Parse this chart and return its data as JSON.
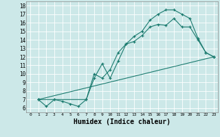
{
  "background_color": "#cce8e8",
  "grid_color": "#ffffff",
  "line_color": "#1a7a6e",
  "xlabel": "Humidex (Indice chaleur)",
  "xlim": [
    -0.5,
    23.5
  ],
  "ylim": [
    5.5,
    18.5
  ],
  "xticks": [
    0,
    1,
    2,
    3,
    4,
    5,
    6,
    7,
    8,
    9,
    10,
    11,
    12,
    13,
    14,
    15,
    16,
    17,
    18,
    19,
    20,
    21,
    22,
    23
  ],
  "yticks": [
    6,
    7,
    8,
    9,
    10,
    11,
    12,
    13,
    14,
    15,
    16,
    17,
    18
  ],
  "line1_x": [
    1,
    2,
    3,
    4,
    5,
    6,
    7,
    8,
    9,
    10,
    11,
    12,
    13,
    14,
    15,
    16,
    17,
    18,
    19,
    20,
    21,
    22,
    23
  ],
  "line1_y": [
    7.0,
    6.2,
    7.0,
    6.8,
    6.5,
    6.2,
    7.0,
    9.5,
    11.2,
    9.5,
    11.5,
    13.5,
    14.4,
    15.0,
    16.3,
    17.0,
    17.5,
    17.5,
    17.0,
    16.5,
    14.2,
    12.5,
    12.0
  ],
  "line2_x": [
    1,
    3,
    7,
    8,
    9,
    10,
    11,
    12,
    13,
    14,
    15,
    16,
    17,
    18,
    19,
    20,
    21,
    22,
    23
  ],
  "line2_y": [
    7.0,
    7.0,
    7.0,
    10.0,
    9.5,
    10.5,
    12.5,
    13.5,
    13.8,
    14.5,
    15.5,
    15.8,
    15.7,
    16.5,
    15.5,
    15.5,
    14.0,
    12.5,
    12.0
  ],
  "line3_x": [
    1,
    23
  ],
  "line3_y": [
    7.0,
    12.0
  ],
  "marker_size": 3.5,
  "line_width": 0.8
}
